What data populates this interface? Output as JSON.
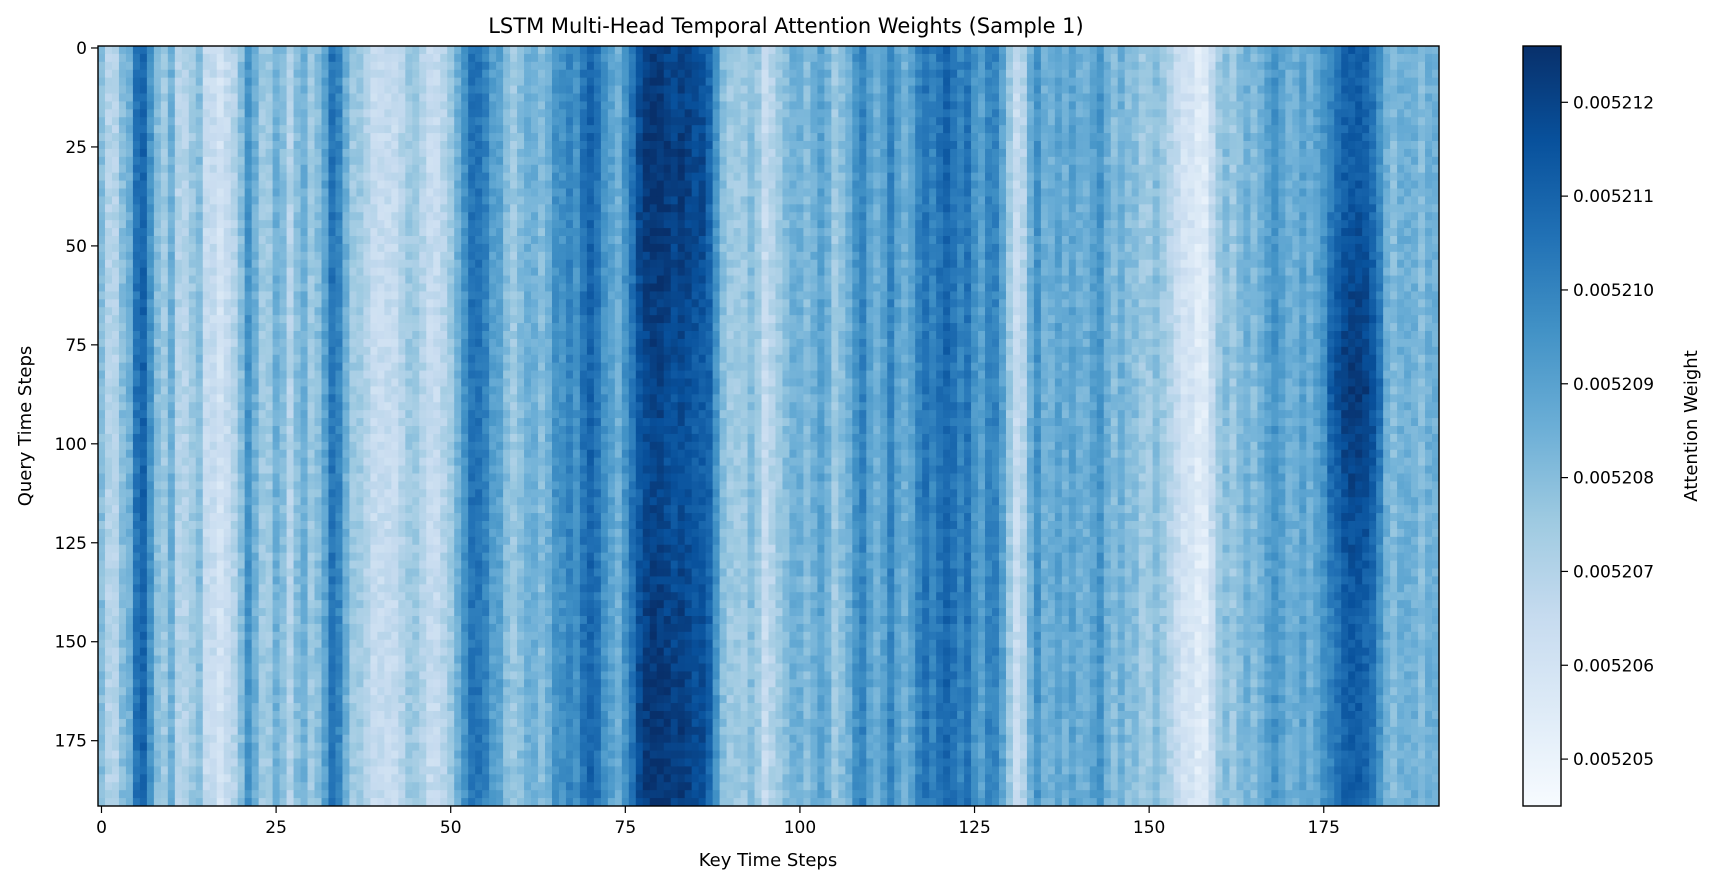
{
  "chart_data": {
    "type": "heatmap",
    "title": "LSTM Multi-Head Temporal Attention Weights (Sample 1)",
    "xlabel": "Key Time Steps",
    "ylabel": "Query Time Steps",
    "colorbar_label": "Attention Weight",
    "colormap": "Blues",
    "n_rows": 192,
    "n_cols": 192,
    "x_ticks": [
      0,
      25,
      50,
      75,
      100,
      125,
      150,
      175
    ],
    "y_ticks": [
      0,
      25,
      50,
      75,
      100,
      125,
      150,
      175
    ],
    "color_range": [
      0.0052045,
      0.0052126
    ],
    "colorbar_ticks": [
      0.005205,
      0.005206,
      0.005207,
      0.005208,
      0.005209,
      0.00521,
      0.005211,
      0.005212
    ],
    "colorbar_tick_labels": [
      "0.005205",
      "0.005206",
      "0.005207",
      "0.005208",
      "0.005209",
      "0.005210",
      "0.005211",
      "0.005212"
    ],
    "column_profile": [
      [
        0,
        0.005208
      ],
      [
        1,
        0.005207
      ],
      [
        2,
        0.005207
      ],
      [
        3,
        0.005208
      ],
      [
        4,
        0.0052085
      ],
      [
        5,
        0.0052105
      ],
      [
        6,
        0.005211
      ],
      [
        7,
        0.0052095
      ],
      [
        8,
        0.005208
      ],
      [
        9,
        0.0052075
      ],
      [
        10,
        0.0052085
      ],
      [
        11,
        0.005207
      ],
      [
        12,
        0.005207
      ],
      [
        13,
        0.0052075
      ],
      [
        14,
        0.005208
      ],
      [
        15,
        0.0052065
      ],
      [
        16,
        0.0052065
      ],
      [
        17,
        0.005206
      ],
      [
        18,
        0.0052065
      ],
      [
        19,
        0.005207
      ],
      [
        20,
        0.005208
      ],
      [
        21,
        0.0052095
      ],
      [
        22,
        0.0052085
      ],
      [
        23,
        0.0052075
      ],
      [
        24,
        0.0052075
      ],
      [
        25,
        0.0052085
      ],
      [
        26,
        0.005208
      ],
      [
        27,
        0.005207
      ],
      [
        28,
        0.005208
      ],
      [
        29,
        0.0052085
      ],
      [
        30,
        0.0052075
      ],
      [
        31,
        0.005208
      ],
      [
        32,
        0.005209
      ],
      [
        33,
        0.0052105
      ],
      [
        34,
        0.00521
      ],
      [
        35,
        0.0052085
      ],
      [
        36,
        0.0052075
      ],
      [
        37,
        0.0052075
      ],
      [
        38,
        0.005207
      ],
      [
        39,
        0.0052065
      ],
      [
        40,
        0.0052065
      ],
      [
        41,
        0.0052065
      ],
      [
        42,
        0.0052065
      ],
      [
        43,
        0.005207
      ],
      [
        44,
        0.0052075
      ],
      [
        45,
        0.0052075
      ],
      [
        46,
        0.005207
      ],
      [
        47,
        0.0052065
      ],
      [
        48,
        0.0052065
      ],
      [
        49,
        0.005207
      ],
      [
        50,
        0.0052075
      ],
      [
        51,
        0.0052085
      ],
      [
        52,
        0.0052095
      ],
      [
        53,
        0.0052105
      ],
      [
        54,
        0.0052105
      ],
      [
        55,
        0.00521
      ],
      [
        56,
        0.005209
      ],
      [
        57,
        0.005209
      ],
      [
        58,
        0.005208
      ],
      [
        59,
        0.0052075
      ],
      [
        60,
        0.005208
      ],
      [
        61,
        0.0052085
      ],
      [
        62,
        0.0052085
      ],
      [
        63,
        0.005208
      ],
      [
        64,
        0.0052085
      ],
      [
        65,
        0.0052095
      ],
      [
        66,
        0.0052095
      ],
      [
        67,
        0.00521
      ],
      [
        68,
        0.0052095
      ],
      [
        69,
        0.0052105
      ],
      [
        70,
        0.005211
      ],
      [
        71,
        0.0052105
      ],
      [
        72,
        0.0052095
      ],
      [
        73,
        0.005209
      ],
      [
        74,
        0.0052085
      ],
      [
        75,
        0.0052095
      ],
      [
        76,
        0.0052105
      ],
      [
        77,
        0.0052115
      ],
      [
        78,
        0.005212
      ],
      [
        79,
        0.0052122
      ],
      [
        80,
        0.0052122
      ],
      [
        81,
        0.005212
      ],
      [
        82,
        0.0052118
      ],
      [
        83,
        0.005212
      ],
      [
        84,
        0.0052118
      ],
      [
        85,
        0.0052115
      ],
      [
        86,
        0.0052115
      ],
      [
        87,
        0.005211
      ],
      [
        88,
        0.0052095
      ],
      [
        89,
        0.005208
      ],
      [
        90,
        0.0052075
      ],
      [
        91,
        0.0052075
      ],
      [
        92,
        0.0052075
      ],
      [
        93,
        0.005208
      ],
      [
        94,
        0.0052075
      ],
      [
        95,
        0.0052065
      ],
      [
        96,
        0.005207
      ],
      [
        97,
        0.0052075
      ],
      [
        98,
        0.005208
      ],
      [
        99,
        0.0052085
      ],
      [
        100,
        0.0052085
      ],
      [
        101,
        0.005208
      ],
      [
        102,
        0.0052085
      ],
      [
        103,
        0.005209
      ],
      [
        104,
        0.0052085
      ],
      [
        105,
        0.0052075
      ],
      [
        106,
        0.005208
      ],
      [
        107,
        0.0052085
      ],
      [
        108,
        0.0052095
      ],
      [
        109,
        0.00521
      ],
      [
        110,
        0.005209
      ],
      [
        111,
        0.0052085
      ],
      [
        112,
        0.005209
      ],
      [
        113,
        0.00521
      ],
      [
        114,
        0.005209
      ],
      [
        115,
        0.0052085
      ],
      [
        116,
        0.005209
      ],
      [
        117,
        0.00521
      ],
      [
        118,
        0.0052105
      ],
      [
        119,
        0.00521
      ],
      [
        120,
        0.0052105
      ],
      [
        121,
        0.005211
      ],
      [
        122,
        0.0052105
      ],
      [
        123,
        0.00521
      ],
      [
        124,
        0.0052105
      ],
      [
        125,
        0.0052095
      ],
      [
        126,
        0.005209
      ],
      [
        127,
        0.00521
      ],
      [
        128,
        0.00521
      ],
      [
        129,
        0.005209
      ],
      [
        130,
        0.0052075
      ],
      [
        131,
        0.0052065
      ],
      [
        132,
        0.005207
      ],
      [
        133,
        0.0052085
      ],
      [
        134,
        0.0052095
      ],
      [
        135,
        0.0052085
      ],
      [
        136,
        0.0052085
      ],
      [
        137,
        0.005209
      ],
      [
        138,
        0.0052085
      ],
      [
        139,
        0.005209
      ],
      [
        140,
        0.0052085
      ],
      [
        141,
        0.0052085
      ],
      [
        142,
        0.005209
      ],
      [
        143,
        0.0052095
      ],
      [
        144,
        0.0052085
      ],
      [
        145,
        0.005208
      ],
      [
        146,
        0.0052085
      ],
      [
        147,
        0.005208
      ],
      [
        148,
        0.005208
      ],
      [
        149,
        0.0052075
      ],
      [
        150,
        0.0052075
      ],
      [
        151,
        0.005208
      ],
      [
        152,
        0.0052075
      ],
      [
        153,
        0.005207
      ],
      [
        154,
        0.0052065
      ],
      [
        155,
        0.005206
      ],
      [
        156,
        0.005206
      ],
      [
        157,
        0.0052055
      ],
      [
        158,
        0.0052055
      ],
      [
        159,
        0.0052065
      ],
      [
        160,
        0.0052075
      ],
      [
        161,
        0.005208
      ],
      [
        162,
        0.0052075
      ],
      [
        163,
        0.005208
      ],
      [
        164,
        0.0052085
      ],
      [
        165,
        0.005208
      ],
      [
        166,
        0.0052085
      ],
      [
        167,
        0.005209
      ],
      [
        168,
        0.0052095
      ],
      [
        169,
        0.005209
      ],
      [
        170,
        0.0052085
      ],
      [
        171,
        0.0052085
      ],
      [
        172,
        0.005209
      ],
      [
        173,
        0.0052085
      ],
      [
        174,
        0.005209
      ],
      [
        175,
        0.0052095
      ],
      [
        176,
        0.00521
      ],
      [
        177,
        0.0052105
      ],
      [
        178,
        0.005211
      ],
      [
        179,
        0.0052112
      ],
      [
        180,
        0.0052112
      ],
      [
        181,
        0.005211
      ],
      [
        182,
        0.0052105
      ],
      [
        183,
        0.0052095
      ],
      [
        184,
        0.0052085
      ],
      [
        185,
        0.005208
      ],
      [
        186,
        0.0052085
      ],
      [
        187,
        0.0052085
      ],
      [
        188,
        0.0052085
      ],
      [
        189,
        0.005208
      ],
      [
        190,
        0.0052085
      ],
      [
        191,
        0.0052085
      ]
    ],
    "row_trend": "weights are nearly constant down the query axis; each column's value varies by only about ±0.0000005 between rows, and the dark band at key steps 176–183 is darkest around query step 85",
    "grid": false
  }
}
